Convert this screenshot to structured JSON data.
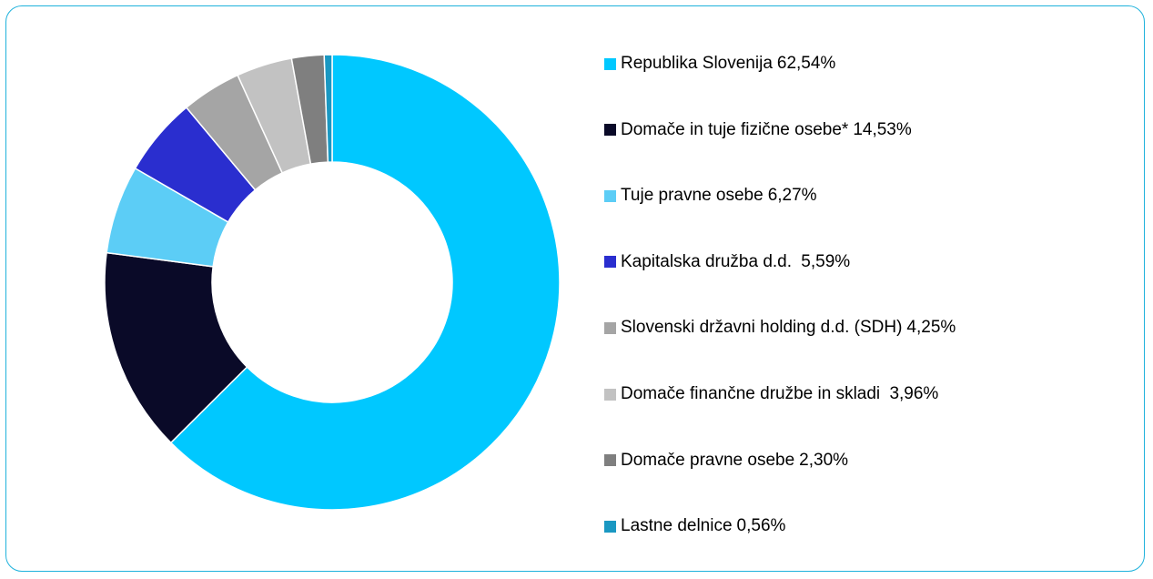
{
  "chart_data": {
    "type": "donut",
    "categories": [
      "Republika Slovenija",
      "Domače in tuje fizične osebe*",
      "Tuje pravne osebe",
      "Kapitalska družba d.d. ",
      "Slovenski državni holding d.d. (SDH)",
      "Domače finančne družbe in skladi ",
      "Domače pravne osebe",
      "Lastne delnice"
    ],
    "values": [
      62.54,
      14.53,
      6.27,
      5.59,
      4.25,
      3.96,
      2.3,
      0.56
    ],
    "value_labels": [
      "62,54%",
      "14,53%",
      "6,27%",
      "5,59%",
      "4,25%",
      "3,96%",
      "2,30%",
      "0,56%"
    ],
    "colors": [
      "#00c8ff",
      "#0a0a28",
      "#5ccdf6",
      "#2a2ecf",
      "#a5a5a5",
      "#c2c2c2",
      "#7f7f7f",
      "#1a98c2"
    ]
  }
}
